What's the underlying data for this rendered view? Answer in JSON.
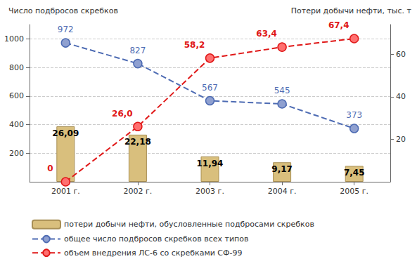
{
  "chart_data": {
    "type": "combo",
    "y_label": "Число подбросов скребков",
    "y2_label": "Потери добычи нефти, тыс. т",
    "categories": [
      "2001 г.",
      "2002 г.",
      "2003 г.",
      "2004 г.",
      "2005 г."
    ],
    "ylim": [
      0,
      1100
    ],
    "yticks": [
      200,
      400,
      600,
      800,
      1000
    ],
    "y2lim": [
      0,
      74
    ],
    "y2ticks": [
      20,
      40,
      60
    ],
    "grid": true,
    "legend": "bottom",
    "data_labels": true,
    "series": [
      {
        "name": "потери добычи нефти, обусловленные подбросами скребков",
        "type": "bar",
        "axis": "y2",
        "color": "#d9bf7d",
        "values": [
          26.09,
          22.18,
          11.94,
          9.17,
          7.45
        ],
        "value_labels": [
          "26,09",
          "22,18",
          "11,94",
          "9,17",
          "7,45"
        ]
      },
      {
        "name": "общее число подбросов скребков всех типов",
        "type": "line",
        "axis": "y",
        "color": "#4d6bb3",
        "marker": "circle",
        "line_style": "dashed",
        "values": [
          972,
          827,
          567,
          545,
          373
        ]
      },
      {
        "name": "объем внедрения ЛС-6 со скребками СФ-99",
        "type": "line",
        "axis": "y2",
        "color": "#e01818",
        "marker": "circle",
        "line_style": "dashed",
        "values": [
          0,
          26.0,
          58.2,
          63.4,
          67.4
        ],
        "value_labels": [
          "0",
          "26,0",
          "58,2",
          "63,4",
          "67,4"
        ]
      }
    ]
  }
}
